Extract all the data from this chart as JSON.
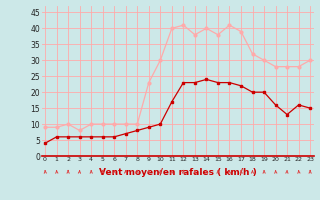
{
  "hours": [
    0,
    1,
    2,
    3,
    4,
    5,
    6,
    7,
    8,
    9,
    10,
    11,
    12,
    13,
    14,
    15,
    16,
    17,
    18,
    19,
    20,
    21,
    22,
    23
  ],
  "wind_mean": [
    4,
    6,
    6,
    6,
    6,
    6,
    6,
    7,
    8,
    9,
    10,
    17,
    23,
    23,
    24,
    23,
    23,
    22,
    20,
    20,
    16,
    13,
    16,
    15
  ],
  "wind_gust": [
    9,
    9,
    10,
    8,
    10,
    10,
    10,
    10,
    10,
    23,
    30,
    40,
    41,
    38,
    40,
    38,
    41,
    39,
    32,
    30,
    28,
    28,
    28,
    30
  ],
  "mean_color": "#cc0000",
  "gust_color": "#ffaaaa",
  "bg_color": "#cce8e8",
  "grid_color": "#ffaaaa",
  "xlabel": "Vent moyen/en rafales ( km/h )",
  "xlabel_color": "#cc0000",
  "yticks": [
    0,
    5,
    10,
    15,
    20,
    25,
    30,
    35,
    40,
    45
  ],
  "ylim": [
    0,
    47
  ],
  "xlim": [
    -0.3,
    23.3
  ],
  "arrow_color": "#dd4444"
}
